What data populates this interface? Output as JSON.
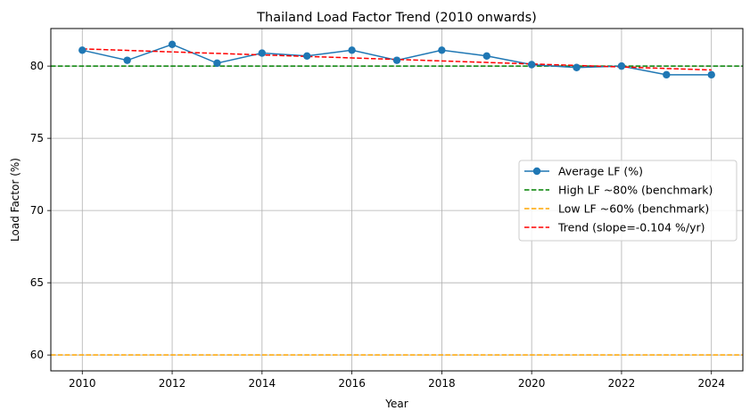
{
  "chart_data": {
    "type": "line",
    "title": "Thailand Load Factor Trend (2010 onwards)",
    "xlabel": "Year",
    "ylabel": "Load Factor (%)",
    "xlim": [
      2009.3,
      2024.7
    ],
    "ylim": [
      58.9,
      82.6
    ],
    "xticks": [
      2010,
      2012,
      2014,
      2016,
      2018,
      2020,
      2022,
      2024
    ],
    "yticks": [
      60,
      65,
      70,
      75,
      80
    ],
    "grid": true,
    "legend_position": "center-right",
    "series": [
      {
        "name": "Average LF (%)",
        "kind": "line-marker",
        "color": "#1f77b4",
        "x": [
          2010,
          2011,
          2012,
          2013,
          2014,
          2015,
          2016,
          2017,
          2018,
          2019,
          2020,
          2021,
          2022,
          2023,
          2024
        ],
        "y": [
          81.1,
          80.4,
          81.5,
          80.2,
          80.9,
          80.7,
          81.1,
          80.4,
          81.1,
          80.7,
          80.1,
          79.9,
          80.0,
          79.4,
          79.4
        ]
      },
      {
        "name": "High LF ~80% (benchmark)",
        "kind": "hline",
        "color": "#008000",
        "y": 80
      },
      {
        "name": "Low LF ~60% (benchmark)",
        "kind": "hline",
        "color": "#ffa500",
        "y": 60
      },
      {
        "name": "Trend (slope=-0.104 %/yr)",
        "kind": "trend",
        "color": "#ff0000",
        "x": [
          2010,
          2024
        ],
        "y": [
          81.19,
          79.73
        ]
      }
    ]
  }
}
